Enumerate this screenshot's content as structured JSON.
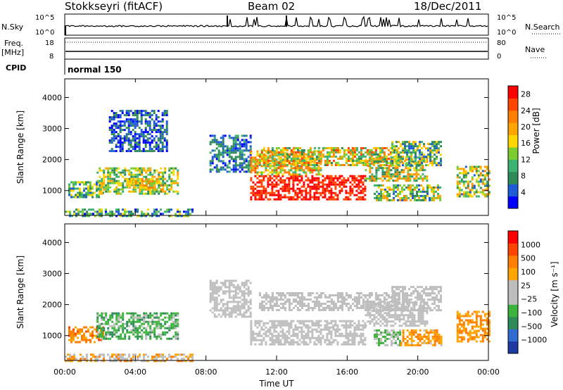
{
  "header": {
    "station": "Stokkseyri (fitACF)",
    "beam": "Beam 02",
    "date": "18/Dec/2011"
  },
  "strip_labels": {
    "nsky": "N.Sky",
    "nsearch": "N.Search",
    "freq_line1": "Freq.",
    "freq_line2": "[MHz]",
    "nave": "Nave",
    "cpid": "CPID",
    "cpid_value": "normal 150",
    "nsky_ticks": [
      "10^5",
      "10^0"
    ],
    "nsearch_ticks": [
      "10^5",
      "10^0"
    ],
    "freq_ticks": [
      "18",
      "8"
    ],
    "nave_ticks": [
      "80",
      "0"
    ]
  },
  "colors": {
    "power": [
      "#0000ff",
      "#1f5ad7",
      "#2e8b57",
      "#3cb371",
      "#7ccd32",
      "#ffd700",
      "#ffa500",
      "#ff7f00",
      "#ff4500",
      "#ff0000"
    ],
    "velocity": [
      "#1e3ca0",
      "#2f6bd0",
      "#2e8b57",
      "#3cb33c",
      "#bebebe",
      "#bebebe",
      "#ffa500",
      "#ff7f00",
      "#ff4500",
      "#ff0000"
    ]
  },
  "chart_data": [
    {
      "type": "heatmap",
      "name": "power",
      "ylabel": "Slant Range [km]",
      "xlabel": "Time UT",
      "x_ticks": [
        "00:00",
        "04:00",
        "08:00",
        "12:00",
        "16:00",
        "20:00",
        "00:00"
      ],
      "x_range_hours": [
        0,
        24
      ],
      "y_ticks": [
        1000,
        2000,
        3000,
        4000
      ],
      "ylim": [
        200,
        4600
      ],
      "colorbar": {
        "label": "Power [dB]",
        "ticks": [
          4,
          8,
          12,
          16,
          20,
          24,
          28
        ],
        "range": [
          0,
          30
        ]
      },
      "regions": [
        {
          "t0": 0.0,
          "t1": 7.2,
          "r0": 180,
          "r1": 420,
          "level": 0.32,
          "spread": 0.25
        },
        {
          "t0": 0.2,
          "t1": 2.2,
          "r0": 800,
          "r1": 1300,
          "level": 0.35,
          "spread": 0.25
        },
        {
          "t0": 1.8,
          "t1": 6.4,
          "r0": 900,
          "r1": 1750,
          "level": 0.45,
          "spread": 0.25
        },
        {
          "t0": 3.5,
          "t1": 5.5,
          "r0": 1050,
          "r1": 1400,
          "level": 0.6,
          "spread": 0.2
        },
        {
          "t0": 2.5,
          "t1": 5.8,
          "r0": 2300,
          "r1": 3600,
          "level": 0.15,
          "spread": 0.15
        },
        {
          "t0": 8.2,
          "t1": 10.5,
          "r0": 1600,
          "r1": 2800,
          "level": 0.2,
          "spread": 0.15
        },
        {
          "t0": 10.5,
          "t1": 17.0,
          "r0": 700,
          "r1": 1500,
          "level": 0.92,
          "spread": 0.12
        },
        {
          "t0": 10.5,
          "t1": 14.5,
          "r0": 1500,
          "r1": 2300,
          "level": 0.6,
          "spread": 0.25
        },
        {
          "t0": 11.0,
          "t1": 19.0,
          "r0": 1800,
          "r1": 2400,
          "level": 0.55,
          "spread": 0.3
        },
        {
          "t0": 17.0,
          "t1": 20.5,
          "r0": 1300,
          "r1": 2100,
          "level": 0.5,
          "spread": 0.3
        },
        {
          "t0": 18.5,
          "t1": 21.3,
          "r0": 1800,
          "r1": 2600,
          "level": 0.4,
          "spread": 0.3
        },
        {
          "t0": 17.5,
          "t1": 21.3,
          "r0": 700,
          "r1": 1200,
          "level": 0.45,
          "spread": 0.3
        },
        {
          "t0": 22.2,
          "t1": 24.0,
          "r0": 800,
          "r1": 1800,
          "level": 0.45,
          "spread": 0.3
        }
      ]
    },
    {
      "type": "heatmap",
      "name": "velocity",
      "ylabel": "Slant Range [km]",
      "xlabel": "Time UT",
      "x_ticks": [
        "00:00",
        "04:00",
        "08:00",
        "12:00",
        "16:00",
        "20:00",
        "00:00"
      ],
      "x_range_hours": [
        0,
        24
      ],
      "y_ticks": [
        1000,
        2000,
        3000,
        4000
      ],
      "ylim": [
        200,
        4600
      ],
      "colorbar": {
        "label": "Velocity [m s⁻¹]",
        "ticks": [
          1000,
          500,
          100,
          25,
          -25,
          -100,
          -500,
          -1000
        ]
      },
      "regions": [
        {
          "t0": 0.0,
          "t1": 7.2,
          "r0": 180,
          "r1": 420,
          "level": 0.6,
          "spread": 0.2
        },
        {
          "t0": 0.2,
          "t1": 2.2,
          "r0": 800,
          "r1": 1300,
          "level": 0.72,
          "spread": 0.1
        },
        {
          "t0": 1.8,
          "t1": 6.4,
          "r0": 900,
          "r1": 1750,
          "level": 0.35,
          "spread": 0.1
        },
        {
          "t0": 8.2,
          "t1": 10.5,
          "r0": 1600,
          "r1": 2800,
          "level": 0.5,
          "spread": 0.03
        },
        {
          "t0": 10.5,
          "t1": 17.0,
          "r0": 700,
          "r1": 1500,
          "level": 0.5,
          "spread": 0.03
        },
        {
          "t0": 11.0,
          "t1": 19.0,
          "r0": 1800,
          "r1": 2400,
          "level": 0.5,
          "spread": 0.03
        },
        {
          "t0": 17.0,
          "t1": 20.5,
          "r0": 1300,
          "r1": 2100,
          "level": 0.5,
          "spread": 0.03
        },
        {
          "t0": 18.5,
          "t1": 21.3,
          "r0": 1800,
          "r1": 2600,
          "level": 0.5,
          "spread": 0.03
        },
        {
          "t0": 17.5,
          "t1": 19.0,
          "r0": 700,
          "r1": 1200,
          "level": 0.4,
          "spread": 0.08
        },
        {
          "t0": 19.0,
          "t1": 21.3,
          "r0": 700,
          "r1": 1200,
          "level": 0.68,
          "spread": 0.1
        },
        {
          "t0": 22.2,
          "t1": 24.0,
          "r0": 800,
          "r1": 1800,
          "level": 0.7,
          "spread": 0.1
        }
      ]
    }
  ]
}
